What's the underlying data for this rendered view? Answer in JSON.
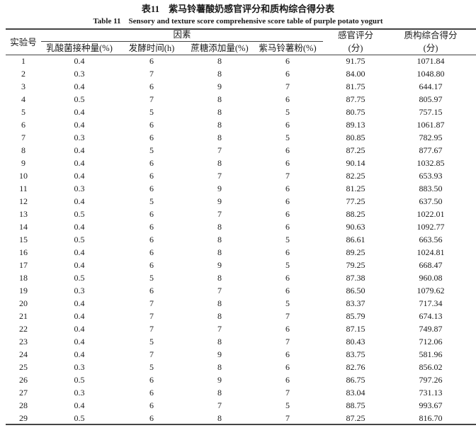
{
  "title": "表11　紫马铃薯酸奶感官评分和质构综合得分表",
  "subtitle": "Table 11　Sensory and texture score comprehensive score table of purple potato yogurt",
  "header": {
    "run": "实验号",
    "factors_group": "因素",
    "factors": [
      "乳酸菌接种量(%)",
      "发酵时间(h)",
      "蔗糖添加量(%)",
      "紫马铃薯粉(%)"
    ],
    "sensory": [
      "感官评分",
      "(分)"
    ],
    "texture": [
      "质构综合得分",
      "(分)"
    ]
  },
  "rows": [
    [
      "1",
      "0.4",
      "6",
      "8",
      "6",
      "91.75",
      "1071.84"
    ],
    [
      "2",
      "0.3",
      "7",
      "8",
      "6",
      "84.00",
      "1048.80"
    ],
    [
      "3",
      "0.4",
      "6",
      "9",
      "7",
      "81.75",
      "644.17"
    ],
    [
      "4",
      "0.5",
      "7",
      "8",
      "6",
      "87.75",
      "805.97"
    ],
    [
      "5",
      "0.4",
      "5",
      "8",
      "5",
      "80.75",
      "757.15"
    ],
    [
      "6",
      "0.4",
      "6",
      "8",
      "6",
      "89.13",
      "1061.87"
    ],
    [
      "7",
      "0.3",
      "6",
      "8",
      "5",
      "80.85",
      "782.95"
    ],
    [
      "8",
      "0.4",
      "5",
      "7",
      "6",
      "87.25",
      "877.67"
    ],
    [
      "9",
      "0.4",
      "6",
      "8",
      "6",
      "90.14",
      "1032.85"
    ],
    [
      "10",
      "0.4",
      "6",
      "7",
      "7",
      "82.25",
      "653.93"
    ],
    [
      "11",
      "0.3",
      "6",
      "9",
      "6",
      "81.25",
      "883.50"
    ],
    [
      "12",
      "0.4",
      "5",
      "9",
      "6",
      "77.25",
      "637.50"
    ],
    [
      "13",
      "0.5",
      "6",
      "7",
      "6",
      "88.25",
      "1022.01"
    ],
    [
      "14",
      "0.4",
      "6",
      "8",
      "6",
      "90.63",
      "1092.77"
    ],
    [
      "15",
      "0.5",
      "6",
      "8",
      "5",
      "86.61",
      "663.56"
    ],
    [
      "16",
      "0.4",
      "6",
      "8",
      "6",
      "89.25",
      "1024.81"
    ],
    [
      "17",
      "0.4",
      "6",
      "9",
      "5",
      "79.25",
      "668.47"
    ],
    [
      "18",
      "0.5",
      "5",
      "8",
      "6",
      "87.38",
      "960.08"
    ],
    [
      "19",
      "0.3",
      "6",
      "7",
      "6",
      "86.50",
      "1079.62"
    ],
    [
      "20",
      "0.4",
      "7",
      "8",
      "5",
      "83.37",
      "717.34"
    ],
    [
      "21",
      "0.4",
      "7",
      "8",
      "7",
      "85.79",
      "674.13"
    ],
    [
      "22",
      "0.4",
      "7",
      "7",
      "6",
      "87.15",
      "749.87"
    ],
    [
      "23",
      "0.4",
      "5",
      "8",
      "7",
      "80.43",
      "712.06"
    ],
    [
      "24",
      "0.4",
      "7",
      "9",
      "6",
      "83.75",
      "581.96"
    ],
    [
      "25",
      "0.3",
      "5",
      "8",
      "6",
      "82.76",
      "856.02"
    ],
    [
      "26",
      "0.5",
      "6",
      "9",
      "6",
      "86.75",
      "797.26"
    ],
    [
      "27",
      "0.3",
      "6",
      "8",
      "7",
      "83.04",
      "731.13"
    ],
    [
      "28",
      "0.4",
      "6",
      "7",
      "5",
      "88.75",
      "993.67"
    ],
    [
      "29",
      "0.5",
      "6",
      "8",
      "7",
      "87.25",
      "816.70"
    ]
  ]
}
